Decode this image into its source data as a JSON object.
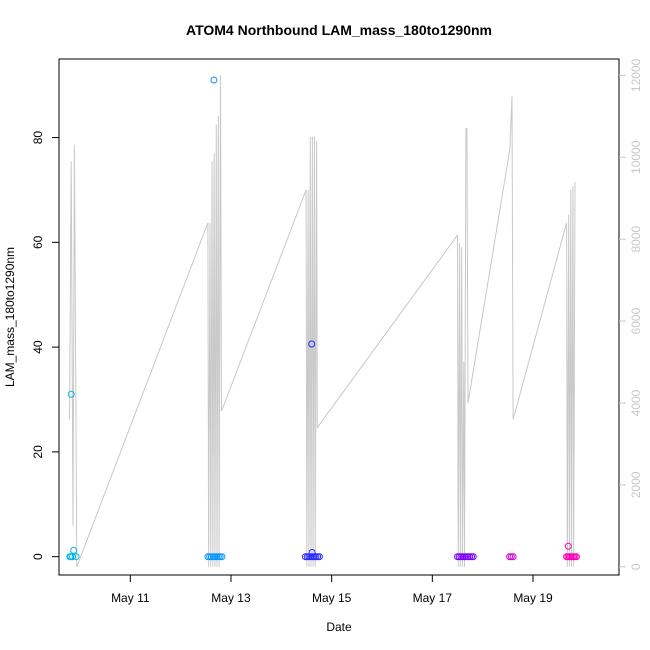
{
  "chart_data": {
    "type": "scatter",
    "title": "ATOM4 Northbound LAM_mass_180to1290nm",
    "xlabel": "Date",
    "ylabel": "LAM_mass_180to1290nm",
    "x_ticks": [
      "May 11",
      "May 13",
      "May 15",
      "May 17",
      "May 19"
    ],
    "y_ticks": [
      "0",
      "20",
      "40",
      "60",
      "80"
    ],
    "y2_ticks": [
      "0",
      "2000",
      "4000",
      "6000",
      "8000",
      "10000",
      "12000"
    ],
    "xlim": [
      "2019-05-09 14:00",
      "2019-05-20 17:00"
    ],
    "ylim": [
      -3.5,
      95
    ],
    "y2lim": [
      -200,
      12400
    ],
    "line_color": "#c8c8c8",
    "series": [
      {
        "color": "#00b4e6",
        "points": [
          [
            "2019-05-09 19:50",
            31
          ],
          [
            "2019-05-09 19:10",
            0
          ],
          [
            "2019-05-09 19:40",
            0
          ],
          [
            "2019-05-09 20:30",
            0
          ],
          [
            "2019-05-09 21:00",
            1.2
          ],
          [
            "2019-05-09 22:10",
            0
          ]
        ]
      },
      {
        "color": "#0096ff",
        "points": [
          [
            "2019-05-12 13:00",
            0
          ],
          [
            "2019-05-12 13:50",
            0
          ],
          [
            "2019-05-12 14:40",
            0
          ],
          [
            "2019-05-12 15:30",
            0
          ],
          [
            "2019-05-12 16:20",
            0
          ],
          [
            "2019-05-12 17:10",
            0
          ],
          [
            "2019-05-12 18:00",
            0
          ],
          [
            "2019-05-12 18:50",
            0
          ],
          [
            "2019-05-12 19:40",
            0
          ],
          [
            "2019-05-12 15:50",
            91
          ]
        ]
      },
      {
        "color": "#2828ff",
        "points": [
          [
            "2019-05-14 11:30",
            0
          ],
          [
            "2019-05-14 12:20",
            0
          ],
          [
            "2019-05-14 13:10",
            0
          ],
          [
            "2019-05-14 14:00",
            0
          ],
          [
            "2019-05-14 14:50",
            0
          ],
          [
            "2019-05-14 15:40",
            0
          ],
          [
            "2019-05-14 16:30",
            0
          ],
          [
            "2019-05-14 17:20",
            0
          ],
          [
            "2019-05-14 18:10",
            0
          ],
          [
            "2019-05-14 14:30",
            40.6
          ],
          [
            "2019-05-14 14:40",
            0.8
          ]
        ]
      },
      {
        "color": "#7800ff",
        "points": [
          [
            "2019-05-17 12:00",
            0
          ],
          [
            "2019-05-17 12:50",
            0
          ],
          [
            "2019-05-17 13:40",
            0
          ],
          [
            "2019-05-17 14:30",
            0
          ],
          [
            "2019-05-17 15:20",
            0
          ],
          [
            "2019-05-17 16:10",
            0
          ],
          [
            "2019-05-17 17:00",
            0
          ],
          [
            "2019-05-17 17:50",
            0
          ],
          [
            "2019-05-17 18:40",
            0
          ],
          [
            "2019-05-17 19:30",
            0
          ]
        ]
      },
      {
        "color": "#d200d2",
        "points": [
          [
            "2019-05-18 12:50",
            0
          ],
          [
            "2019-05-18 13:40",
            0
          ],
          [
            "2019-05-18 14:30",
            0
          ]
        ]
      },
      {
        "color": "#ff00b4",
        "points": [
          [
            "2019-05-19 16:00",
            0
          ],
          [
            "2019-05-19 16:40",
            0
          ],
          [
            "2019-05-19 17:20",
            0
          ],
          [
            "2019-05-19 18:00",
            0
          ],
          [
            "2019-05-19 18:40",
            0
          ],
          [
            "2019-05-19 19:20",
            0
          ],
          [
            "2019-05-19 20:00",
            0
          ],
          [
            "2019-05-19 20:40",
            0
          ],
          [
            "2019-05-19 16:50",
            2
          ]
        ]
      }
    ],
    "line_y2": [
      [
        "2019-05-09 19:00",
        3600
      ],
      [
        "2019-05-09 19:50",
        9900
      ],
      [
        "2019-05-09 20:40",
        1000
      ],
      [
        "2019-05-09 21:20",
        10300
      ],
      [
        "2019-05-09 22:30",
        0
      ],
      [
        "2019-05-12 13:00",
        8400
      ],
      [
        "2019-05-12 13:20",
        0
      ],
      [
        "2019-05-12 14:00",
        8400
      ],
      [
        "2019-05-12 14:20",
        0
      ],
      [
        "2019-05-12 15:00",
        9900
      ],
      [
        "2019-05-12 15:20",
        0
      ],
      [
        "2019-05-12 16:00",
        10100
      ],
      [
        "2019-05-12 16:20",
        0
      ],
      [
        "2019-05-12 17:00",
        10800
      ],
      [
        "2019-05-12 17:20",
        0
      ],
      [
        "2019-05-12 18:00",
        11000
      ],
      [
        "2019-05-12 18:20",
        0
      ],
      [
        "2019-05-12 19:00",
        12000
      ],
      [
        "2019-05-12 19:30",
        3800
      ],
      [
        "2019-05-14 11:50",
        9200
      ],
      [
        "2019-05-14 12:10",
        0
      ],
      [
        "2019-05-14 12:50",
        9200
      ],
      [
        "2019-05-14 13:10",
        0
      ],
      [
        "2019-05-14 13:50",
        10500
      ],
      [
        "2019-05-14 14:10",
        0
      ],
      [
        "2019-05-14 14:50",
        10500
      ],
      [
        "2019-05-14 15:10",
        0
      ],
      [
        "2019-05-14 15:50",
        10500
      ],
      [
        "2019-05-14 16:10",
        0
      ],
      [
        "2019-05-14 16:50",
        10400
      ],
      [
        "2019-05-14 17:10",
        3400
      ],
      [
        "2019-05-17 12:00",
        8100
      ],
      [
        "2019-05-17 12:20",
        0
      ],
      [
        "2019-05-17 13:00",
        7900
      ],
      [
        "2019-05-17 13:20",
        0
      ],
      [
        "2019-05-17 14:00",
        7800
      ],
      [
        "2019-05-17 14:20",
        0
      ],
      [
        "2019-05-17 15:00",
        5000
      ],
      [
        "2019-05-17 15:20",
        0
      ],
      [
        "2019-05-17 16:00",
        10700
      ],
      [
        "2019-05-17 16:30",
        10700
      ],
      [
        "2019-05-17 17:00",
        4000
      ],
      [
        "2019-05-18 13:00",
        10200
      ],
      [
        "2019-05-18 14:00",
        11500
      ],
      [
        "2019-05-18 14:30",
        3600
      ],
      [
        "2019-05-19 16:00",
        8400
      ],
      [
        "2019-05-19 16:20",
        0
      ],
      [
        "2019-05-19 17:00",
        8600
      ],
      [
        "2019-05-19 17:20",
        0
      ],
      [
        "2019-05-19 18:00",
        9200
      ],
      [
        "2019-05-19 18:20",
        0
      ],
      [
        "2019-05-19 19:00",
        9300
      ],
      [
        "2019-05-19 19:20",
        0
      ],
      [
        "2019-05-19 20:00",
        9400
      ]
    ]
  }
}
